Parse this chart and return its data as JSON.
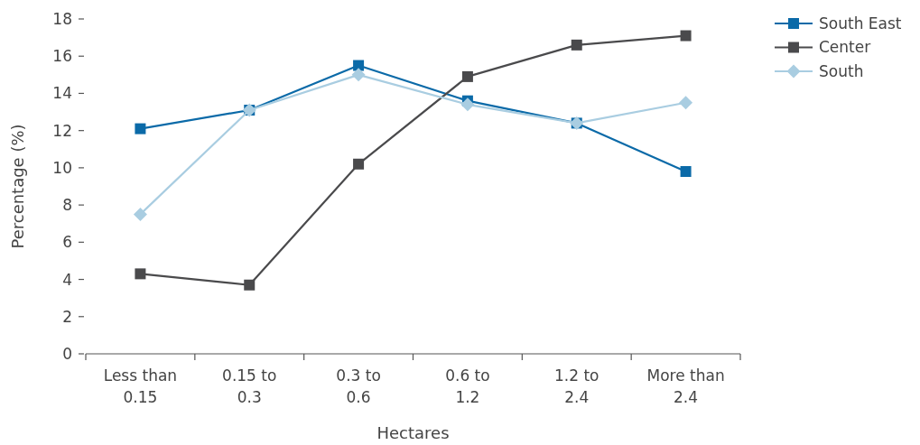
{
  "chart_data": {
    "type": "line",
    "xlabel": "Hectares",
    "ylabel": "Percentage (%)",
    "categories": [
      "Less than 0.15",
      "0.15 to 0.3",
      "0.3 to 0.6",
      "0.6 to 1.2",
      "1.2 to 2.4",
      "More than 2.4"
    ],
    "ylim": [
      0,
      18
    ],
    "yticks": [
      0,
      2,
      4,
      6,
      8,
      10,
      12,
      14,
      16,
      18
    ],
    "grid": false,
    "legend": "top right",
    "series": [
      {
        "name": "South East",
        "color": "#0b6aa8",
        "marker": "square",
        "values": [
          12.1,
          13.1,
          15.5,
          13.6,
          12.4,
          9.8
        ]
      },
      {
        "name": "Center",
        "color": "#4a4a4c",
        "marker": "square",
        "values": [
          4.3,
          3.7,
          10.2,
          14.9,
          16.6,
          17.1
        ]
      },
      {
        "name": "South",
        "color": "#a9cde1",
        "marker": "diamond",
        "values": [
          7.5,
          13.1,
          15.0,
          13.4,
          12.4,
          13.5
        ]
      }
    ]
  }
}
